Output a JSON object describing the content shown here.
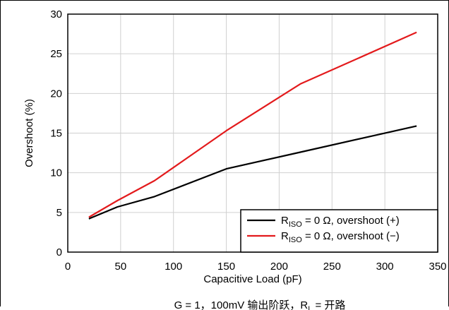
{
  "chart_data": {
    "type": "line",
    "title": "",
    "xlabel": "Capacitive Load (pF)",
    "ylabel": "Overshoot (%)",
    "xlim": [
      0,
      350
    ],
    "ylim": [
      0,
      30
    ],
    "xticks": [
      0,
      50,
      100,
      150,
      200,
      250,
      300,
      350
    ],
    "yticks": [
      0,
      5,
      10,
      15,
      20,
      25,
      30
    ],
    "grid": true,
    "legend_position": "bottom-right",
    "series": [
      {
        "name": "R_ISO = 0 Ω, overshoot (+)",
        "legend": {
          "prefix": "R",
          "sub": "ISO",
          "suffix": " = 0 Ω, overshoot (+)"
        },
        "color": "#000000",
        "x": [
          20,
          47,
          82,
          150,
          220,
          330
        ],
        "y": [
          4.2,
          5.7,
          7.0,
          10.5,
          12.6,
          15.9
        ]
      },
      {
        "name": "R_ISO = 0 Ω, overshoot (−)",
        "legend": {
          "prefix": "R",
          "sub": "ISO",
          "suffix": " = 0 Ω, overshoot (−)"
        },
        "color": "#e31a1c",
        "x": [
          20,
          47,
          82,
          150,
          220,
          330
        ],
        "y": [
          4.4,
          6.5,
          9.0,
          15.3,
          21.2,
          27.7
        ]
      }
    ],
    "caption": "G = 1，100mV 输出阶跃，R",
    "caption_sub": "L",
    "caption_suffix": " = 开路"
  }
}
